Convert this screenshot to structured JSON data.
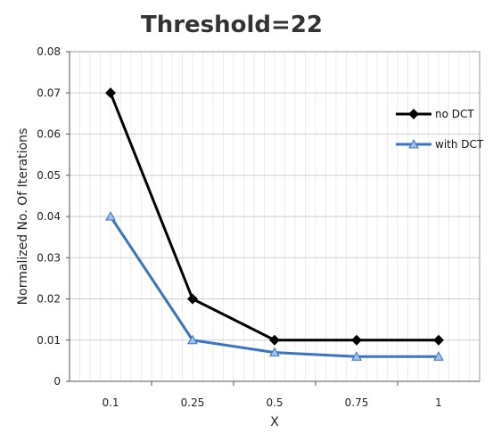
{
  "chart_data": {
    "type": "line",
    "title": "Threshold=22",
    "xlabel": "X",
    "ylabel": "Normalized No. Of Iterations",
    "categories": [
      "0.1",
      "0.25",
      "0.5",
      "0.75",
      "1"
    ],
    "ylim": [
      0,
      0.08
    ],
    "yticks": [
      "0",
      "0.01",
      "0.02",
      "0.03",
      "0.04",
      "0.05",
      "0.06",
      "0.07",
      "0.08"
    ],
    "grid": true,
    "legend_position": "top-right",
    "series": [
      {
        "name": "no DCT",
        "values": [
          0.07,
          0.02,
          0.01,
          0.01,
          0.01
        ],
        "color": "#000000",
        "marker": "diamond"
      },
      {
        "name": "with DCT",
        "values": [
          0.04,
          0.01,
          0.007,
          0.006,
          0.006
        ],
        "color": "#3a74c4",
        "marker": "triangle"
      }
    ]
  }
}
